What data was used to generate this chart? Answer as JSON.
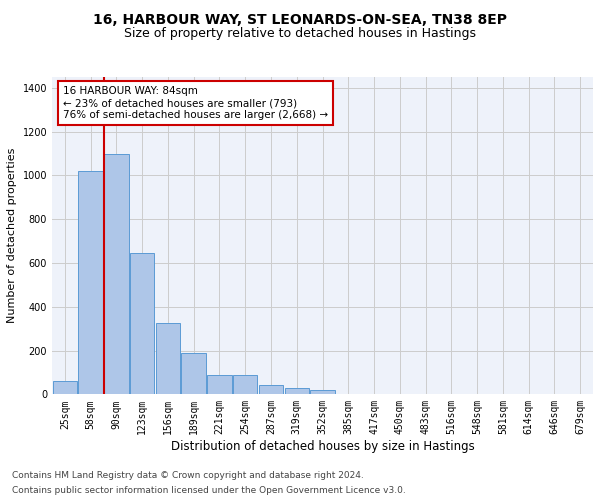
{
  "title_line1": "16, HARBOUR WAY, ST LEONARDS-ON-SEA, TN38 8EP",
  "title_line2": "Size of property relative to detached houses in Hastings",
  "xlabel": "Distribution of detached houses by size in Hastings",
  "ylabel": "Number of detached properties",
  "categories": [
    "25sqm",
    "58sqm",
    "90sqm",
    "123sqm",
    "156sqm",
    "189sqm",
    "221sqm",
    "254sqm",
    "287sqm",
    "319sqm",
    "352sqm",
    "385sqm",
    "417sqm",
    "450sqm",
    "483sqm",
    "516sqm",
    "548sqm",
    "581sqm",
    "614sqm",
    "646sqm",
    "679sqm"
  ],
  "values": [
    60,
    1020,
    1100,
    648,
    325,
    188,
    90,
    90,
    42,
    28,
    18,
    0,
    0,
    0,
    0,
    0,
    0,
    0,
    0,
    0,
    0
  ],
  "bar_color": "#aec6e8",
  "bar_edge_color": "#5b9bd5",
  "vline_x": 1.5,
  "annotation_text_line1": "16 HARBOUR WAY: 84sqm",
  "annotation_text_line2": "← 23% of detached houses are smaller (793)",
  "annotation_text_line3": "76% of semi-detached houses are larger (2,668) →",
  "annotation_box_color": "#ffffff",
  "annotation_box_edge": "#cc0000",
  "vline_color": "#cc0000",
  "grid_color": "#cccccc",
  "background_color": "#eef2fa",
  "footer_line1": "Contains HM Land Registry data © Crown copyright and database right 2024.",
  "footer_line2": "Contains public sector information licensed under the Open Government Licence v3.0.",
  "ylim": [
    0,
    1450
  ],
  "title_fontsize": 10,
  "subtitle_fontsize": 9,
  "xlabel_fontsize": 8.5,
  "ylabel_fontsize": 8,
  "tick_fontsize": 7,
  "footer_fontsize": 6.5,
  "ann_fontsize": 7.5
}
